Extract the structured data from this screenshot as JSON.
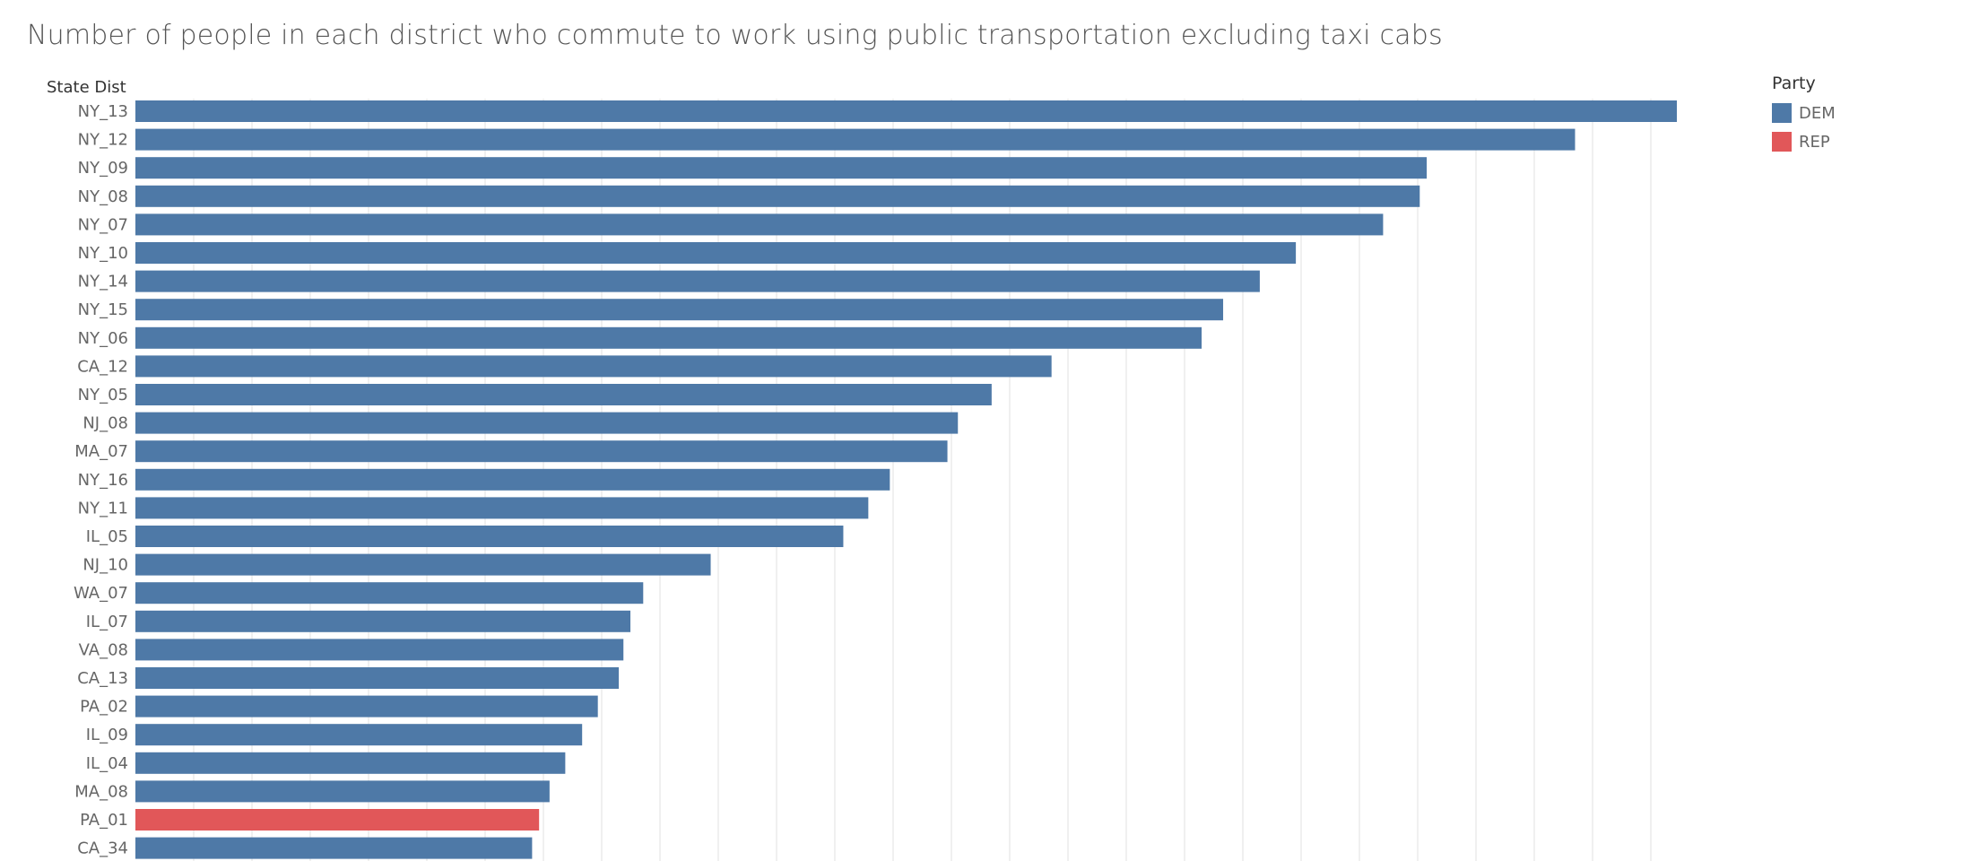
{
  "chart_data": {
    "type": "bar",
    "orientation": "horizontal",
    "title": "Number of people in each district who commute to work using public transportation excluding taxi cabs",
    "row_header": "State Dist",
    "categories": [
      "NY_13",
      "NY_12",
      "NY_09",
      "NY_08",
      "NY_07",
      "NY_10",
      "NY_14",
      "NY_15",
      "NY_06",
      "CA_12",
      "NY_05",
      "NJ_08",
      "MA_07",
      "NY_16",
      "NY_11",
      "IL_05",
      "NJ_10",
      "WA_07",
      "IL_07",
      "VA_08",
      "CA_13",
      "PA_02",
      "IL_09",
      "IL_04",
      "MA_08",
      "PA_01",
      "CA_34"
    ],
    "values": [
      265,
      247.5,
      222,
      220.8,
      214.5,
      199.5,
      193.3,
      187,
      183.3,
      157.5,
      147.2,
      141.4,
      139.6,
      129.7,
      126,
      121.7,
      98.9,
      87.3,
      85.1,
      83.9,
      83.1,
      79.5,
      76.8,
      73.9,
      71.2,
      69.4,
      68.2
    ],
    "party": [
      "DEM",
      "DEM",
      "DEM",
      "DEM",
      "DEM",
      "DEM",
      "DEM",
      "DEM",
      "DEM",
      "DEM",
      "DEM",
      "DEM",
      "DEM",
      "DEM",
      "DEM",
      "DEM",
      "DEM",
      "DEM",
      "DEM",
      "DEM",
      "DEM",
      "DEM",
      "DEM",
      "DEM",
      "DEM",
      "REP",
      "DEM"
    ],
    "xlim": [
      0,
      290
    ],
    "gridlines": "vertical",
    "legend": {
      "title": "Party",
      "position": "top-right",
      "entries": [
        {
          "name": "DEM",
          "color": "#4e79a7"
        },
        {
          "name": "REP",
          "color": "#e15759"
        }
      ]
    }
  }
}
